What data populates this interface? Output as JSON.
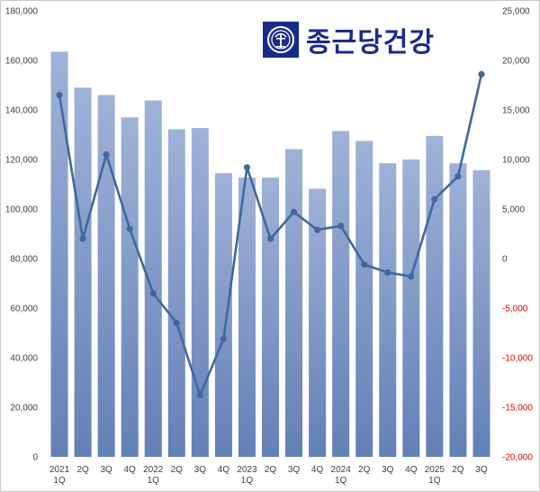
{
  "brand": {
    "name": "종근당건강",
    "logo_icon": "ckd-emblem-icon",
    "color": "#1a2a8c"
  },
  "chart_data": {
    "type": "bar",
    "categories": [
      [
        "2021",
        "1Q"
      ],
      [
        "2Q"
      ],
      [
        "3Q"
      ],
      [
        "4Q"
      ],
      [
        "2022",
        "1Q"
      ],
      [
        "2Q"
      ],
      [
        "3Q"
      ],
      [
        "4Q"
      ],
      [
        "2023",
        "1Q"
      ],
      [
        "2Q"
      ],
      [
        "3Q"
      ],
      [
        "4Q"
      ],
      [
        "2024",
        "1Q"
      ],
      [
        "2Q"
      ],
      [
        "3Q"
      ],
      [
        "4Q"
      ],
      [
        "2025",
        "1Q"
      ],
      [
        "2Q"
      ],
      [
        "3Q"
      ]
    ],
    "series": [
      {
        "type": "bar",
        "axis": "left",
        "color": "#7f97c6",
        "values": [
          163500,
          149000,
          146000,
          137000,
          143800,
          132200,
          132700,
          114500,
          112700,
          112700,
          124200,
          108200,
          131500,
          127500,
          118500,
          120000,
          129500,
          118500,
          115700
        ]
      },
      {
        "type": "line",
        "axis": "right",
        "color": "#41689c",
        "values": [
          16500,
          2000,
          10500,
          3000,
          -3500,
          -6500,
          -13800,
          -8100,
          9200,
          2000,
          4700,
          2900,
          3300,
          -600,
          -1400,
          -1800,
          6000,
          8300,
          18600
        ]
      }
    ],
    "left_axis": {
      "min": 0,
      "max": 180000,
      "ticks": [
        "180,000",
        "160,000",
        "140,000",
        "120,000",
        "100,000",
        "80,000",
        "60,000",
        "40,000",
        "20,000",
        "0"
      ]
    },
    "right_axis": {
      "min": -20000,
      "max": 25000,
      "ticks": [
        "25,000",
        "20,000",
        "15,000",
        "10,000",
        "5,000",
        "0",
        "-5,000",
        "-10,000",
        "-15,000",
        "-20,000"
      ],
      "negative_color": "#e00000"
    },
    "grid": false,
    "legend": "none"
  }
}
